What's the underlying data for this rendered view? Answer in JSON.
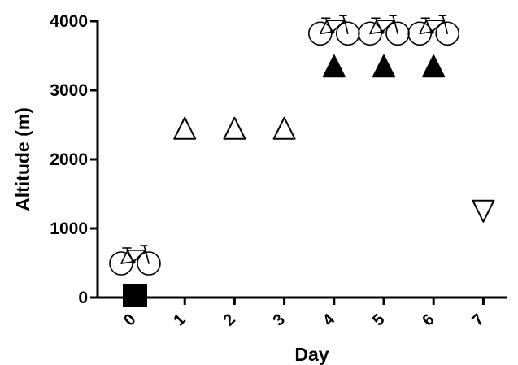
{
  "chart_data": {
    "type": "scatter",
    "xlabel": "Day",
    "ylabel": "Altitude (m)",
    "x_ticks": [
      "0",
      "1",
      "2",
      "3",
      "4",
      "5",
      "6",
      "7"
    ],
    "y_ticks": [
      "0",
      "1000",
      "2000",
      "3000",
      "4000"
    ],
    "xlim": [
      0,
      7
    ],
    "ylim": [
      0,
      4000
    ],
    "grid": false,
    "points": [
      {
        "day": 0,
        "altitude": 0,
        "marker": "square",
        "fill": "#000000",
        "bike": true
      },
      {
        "day": 1,
        "altitude": 2450,
        "marker": "triangle-up",
        "fill": "none",
        "bike": false
      },
      {
        "day": 2,
        "altitude": 2450,
        "marker": "triangle-up",
        "fill": "none",
        "bike": false
      },
      {
        "day": 3,
        "altitude": 2450,
        "marker": "triangle-up",
        "fill": "none",
        "bike": false
      },
      {
        "day": 4,
        "altitude": 3350,
        "marker": "triangle-up",
        "fill": "#000000",
        "bike": true
      },
      {
        "day": 5,
        "altitude": 3350,
        "marker": "triangle-up",
        "fill": "#000000",
        "bike": true
      },
      {
        "day": 6,
        "altitude": 3350,
        "marker": "triangle-up",
        "fill": "#000000",
        "bike": true
      },
      {
        "day": 7,
        "altitude": 1250,
        "marker": "triangle-down",
        "fill": "none",
        "bike": false
      }
    ],
    "icons": {
      "bike": "bicycle-icon"
    },
    "colors": {
      "axis": "#000000",
      "marker_filled": "#000000"
    }
  }
}
